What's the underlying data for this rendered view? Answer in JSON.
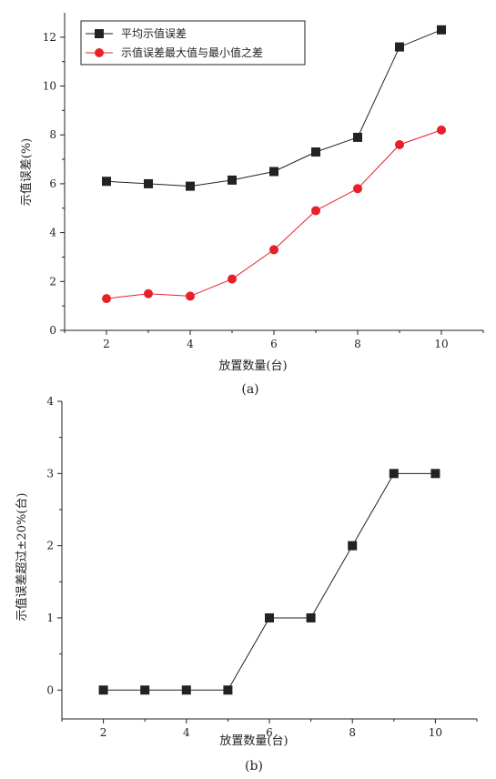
{
  "chart_data": [
    {
      "type": "line",
      "caption": "(a)",
      "xlabel": "放置数量(台)",
      "ylabel": "示值误差(%)",
      "xlim": [
        1,
        11
      ],
      "ylim": [
        0,
        13
      ],
      "xticks": [
        2,
        4,
        6,
        8,
        10
      ],
      "yticks": [
        0,
        2,
        4,
        6,
        8,
        10,
        12
      ],
      "legend_position": "top-left",
      "grid": false,
      "x": [
        2,
        3,
        4,
        5,
        6,
        7,
        8,
        9,
        10
      ],
      "series": [
        {
          "name": "平均示值误差",
          "marker": "square",
          "color": "#222222",
          "values": [
            6.1,
            6.0,
            5.9,
            6.15,
            6.5,
            7.3,
            7.9,
            11.6,
            12.3
          ]
        },
        {
          "name": "示值误差最大值与最小值之差",
          "marker": "circle",
          "color": "#e8202a",
          "values": [
            1.3,
            1.5,
            1.4,
            2.1,
            3.3,
            4.9,
            5.8,
            7.6,
            8.2
          ]
        }
      ]
    },
    {
      "type": "line",
      "caption": "(b)",
      "xlabel": "放置数量(台)",
      "ylabel": "示值误差超过±20%(台)",
      "xlim": [
        1,
        11
      ],
      "ylim": [
        -0.4,
        4
      ],
      "xticks": [
        2,
        4,
        6,
        8,
        10
      ],
      "yticks": [
        0,
        1,
        2,
        3,
        4
      ],
      "grid": false,
      "x": [
        2,
        3,
        4,
        5,
        6,
        7,
        8,
        9,
        10
      ],
      "series": [
        {
          "marker": "square",
          "color": "#222222",
          "values": [
            0,
            0,
            0,
            0,
            1,
            1,
            2,
            3,
            3
          ]
        }
      ]
    }
  ]
}
